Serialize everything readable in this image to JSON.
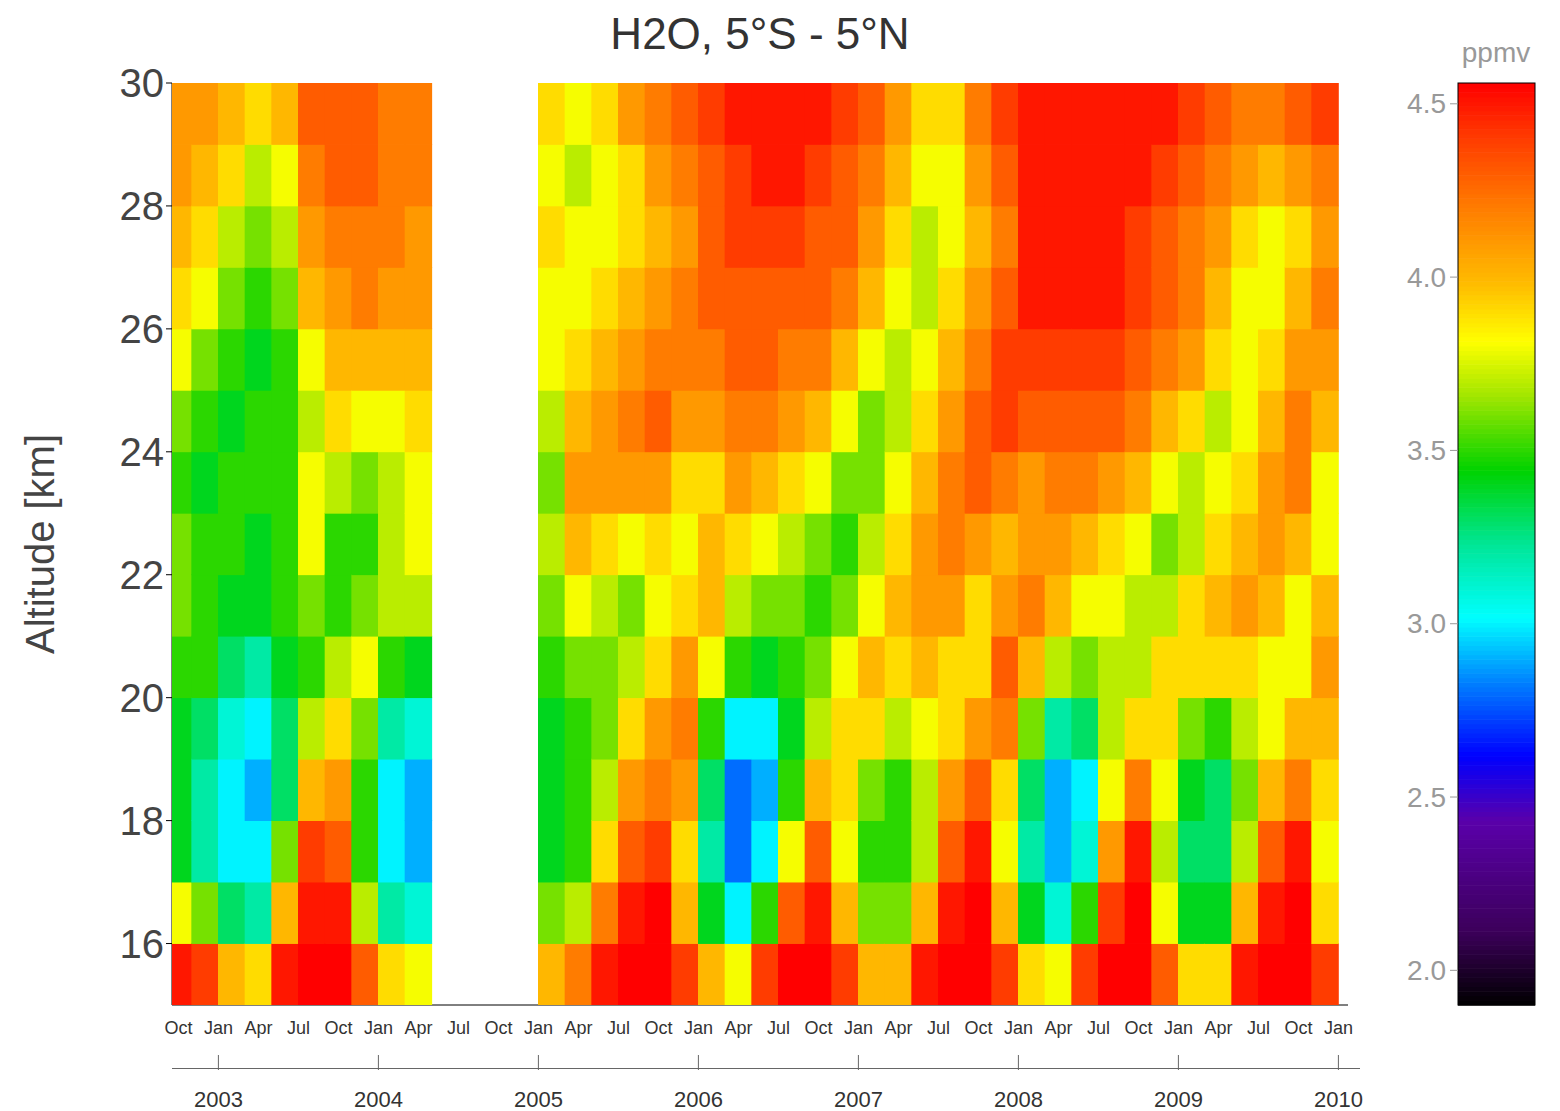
{
  "chart_data": {
    "type": "heatmap",
    "title": "H2O, 5°S - 5°N",
    "y_label": "Altitude [km]",
    "x": [
      2002.75,
      2002.9167,
      2003.0833,
      2003.25,
      2003.4167,
      2003.5833,
      2003.75,
      2003.9167,
      2004.0833,
      2004.25,
      2004.4167,
      2004.5833,
      2004.75,
      2004.9167,
      2005.0833,
      2005.25,
      2005.4167,
      2005.5833,
      2005.75,
      2005.9167,
      2006.0833,
      2006.25,
      2006.4167,
      2006.5833,
      2006.75,
      2006.9167,
      2007.0833,
      2007.25,
      2007.4167,
      2007.5833,
      2007.75,
      2007.9167,
      2008.0833,
      2008.25,
      2008.4167,
      2008.5833,
      2008.75,
      2008.9167,
      2009.0833,
      2009.25,
      2009.4167,
      2009.5833,
      2009.75,
      2009.9167
    ],
    "y": [
      15.5,
      16.5,
      17.5,
      18.5,
      19.5,
      20.5,
      21.5,
      22.5,
      23.5,
      24.5,
      25.5,
      26.5,
      27.5,
      28.5,
      29.5
    ],
    "values": [
      [
        4.5,
        3.8,
        3.4,
        3.4,
        3.4,
        3.5,
        3.6,
        3.6,
        3.5,
        3.6,
        3.8,
        3.9,
        4.0,
        4.1,
        4.1
      ],
      [
        4.4,
        3.6,
        3.2,
        3.2,
        3.3,
        3.5,
        3.5,
        3.5,
        3.4,
        3.5,
        3.6,
        3.8,
        3.9,
        4.0,
        4.1
      ],
      [
        4.0,
        3.3,
        3.0,
        3.0,
        3.1,
        3.3,
        3.4,
        3.5,
        3.5,
        3.4,
        3.5,
        3.6,
        3.7,
        3.9,
        4.0
      ],
      [
        3.9,
        3.2,
        3.0,
        2.9,
        3.0,
        3.2,
        3.4,
        3.4,
        3.5,
        3.5,
        3.4,
        3.5,
        3.6,
        3.7,
        3.9
      ],
      [
        4.5,
        4.0,
        3.6,
        3.3,
        3.3,
        3.4,
        3.5,
        3.5,
        3.5,
        3.5,
        3.5,
        3.6,
        3.7,
        3.8,
        4.0
      ],
      [
        4.6,
        4.5,
        4.4,
        4.0,
        3.7,
        3.5,
        3.6,
        3.8,
        3.8,
        3.7,
        3.8,
        4.0,
        4.1,
        4.2,
        4.3
      ],
      [
        4.6,
        4.5,
        4.3,
        4.1,
        3.9,
        3.7,
        3.5,
        3.5,
        3.7,
        3.9,
        4.0,
        4.1,
        4.2,
        4.3,
        4.3
      ],
      [
        4.3,
        3.7,
        3.5,
        3.5,
        3.6,
        3.8,
        3.6,
        3.5,
        3.6,
        3.8,
        4.0,
        4.2,
        4.2,
        4.3,
        4.3
      ],
      [
        3.9,
        3.2,
        3.0,
        3.0,
        3.2,
        3.5,
        3.7,
        3.7,
        3.7,
        3.8,
        4.0,
        4.1,
        4.2,
        4.2,
        4.2
      ],
      [
        3.8,
        3.1,
        2.9,
        2.9,
        3.1,
        3.4,
        3.7,
        3.8,
        3.8,
        3.9,
        4.0,
        4.1,
        4.1,
        4.2,
        4.2
      ],
      null,
      null,
      null,
      null,
      [
        4.0,
        3.6,
        3.4,
        3.4,
        3.4,
        3.5,
        3.6,
        3.7,
        3.6,
        3.7,
        3.8,
        3.8,
        3.9,
        3.8,
        3.9
      ],
      [
        4.2,
        3.7,
        3.5,
        3.5,
        3.5,
        3.6,
        3.8,
        4.0,
        4.1,
        4.0,
        3.9,
        3.8,
        3.8,
        3.7,
        3.8
      ],
      [
        4.5,
        4.2,
        3.9,
        3.7,
        3.6,
        3.6,
        3.7,
        3.9,
        4.1,
        4.1,
        4.0,
        3.9,
        3.8,
        3.8,
        3.9
      ],
      [
        4.6,
        4.5,
        4.3,
        4.1,
        3.9,
        3.7,
        3.6,
        3.8,
        4.1,
        4.2,
        4.1,
        4.0,
        3.9,
        3.9,
        4.1
      ],
      [
        4.6,
        4.6,
        4.4,
        4.2,
        4.1,
        3.9,
        3.8,
        3.9,
        4.1,
        4.3,
        4.2,
        4.1,
        4.0,
        4.1,
        4.2
      ],
      [
        4.4,
        4.0,
        3.9,
        4.1,
        4.2,
        4.1,
        3.9,
        3.8,
        3.9,
        4.1,
        4.2,
        4.2,
        4.1,
        4.2,
        4.3
      ],
      [
        4.0,
        3.4,
        3.2,
        3.3,
        3.5,
        3.8,
        4.0,
        4.0,
        3.9,
        4.1,
        4.2,
        4.3,
        4.3,
        4.3,
        4.4
      ],
      [
        3.8,
        3.0,
        2.8,
        2.8,
        3.0,
        3.5,
        3.7,
        3.9,
        4.1,
        4.2,
        4.3,
        4.3,
        4.4,
        4.4,
        4.5
      ],
      [
        4.4,
        3.5,
        3.0,
        2.9,
        3.0,
        3.4,
        3.6,
        3.8,
        4.0,
        4.2,
        4.3,
        4.3,
        4.4,
        4.5,
        4.5
      ],
      [
        4.6,
        4.3,
        3.8,
        3.5,
        3.4,
        3.5,
        3.6,
        3.7,
        3.9,
        4.1,
        4.2,
        4.3,
        4.4,
        4.5,
        4.5
      ],
      [
        4.6,
        4.5,
        4.3,
        4.0,
        3.7,
        3.6,
        3.5,
        3.6,
        3.8,
        4.0,
        4.2,
        4.3,
        4.3,
        4.4,
        4.5
      ],
      [
        4.4,
        4.0,
        3.8,
        3.9,
        3.9,
        3.8,
        3.6,
        3.5,
        3.6,
        3.8,
        4.0,
        4.2,
        4.3,
        4.3,
        4.4
      ],
      [
        4.0,
        3.6,
        3.5,
        3.6,
        3.9,
        4.0,
        3.8,
        3.7,
        3.6,
        3.6,
        3.8,
        4.0,
        4.1,
        4.2,
        4.3
      ],
      [
        4.0,
        3.6,
        3.5,
        3.5,
        3.7,
        3.9,
        4.0,
        3.9,
        3.8,
        3.7,
        3.7,
        3.8,
        3.9,
        4.0,
        4.1
      ],
      [
        4.5,
        4.0,
        3.7,
        3.7,
        3.8,
        4.0,
        4.1,
        4.1,
        4.0,
        3.9,
        3.8,
        3.7,
        3.7,
        3.8,
        3.9
      ],
      [
        4.6,
        4.5,
        4.3,
        4.1,
        3.9,
        3.9,
        4.1,
        4.2,
        4.2,
        4.1,
        4.0,
        3.9,
        3.8,
        3.8,
        3.9
      ],
      [
        4.6,
        4.6,
        4.5,
        4.3,
        4.1,
        3.9,
        3.9,
        4.1,
        4.3,
        4.3,
        4.2,
        4.1,
        4.0,
        4.1,
        4.2
      ],
      [
        4.4,
        4.0,
        3.8,
        3.9,
        4.2,
        4.3,
        4.1,
        4.0,
        4.2,
        4.4,
        4.4,
        4.3,
        4.2,
        4.3,
        4.4
      ],
      [
        3.9,
        3.4,
        3.2,
        3.3,
        3.6,
        4.0,
        4.2,
        4.1,
        4.1,
        4.3,
        4.4,
        4.5,
        4.5,
        4.5,
        4.5
      ],
      [
        3.8,
        3.1,
        2.9,
        2.9,
        3.2,
        3.7,
        4.0,
        4.1,
        4.2,
        4.3,
        4.4,
        4.5,
        4.5,
        4.5,
        4.5
      ],
      [
        4.4,
        3.5,
        3.1,
        3.0,
        3.3,
        3.6,
        3.8,
        4.0,
        4.2,
        4.3,
        4.4,
        4.5,
        4.5,
        4.5,
        4.5
      ],
      [
        4.6,
        4.4,
        4.1,
        3.8,
        3.7,
        3.7,
        3.8,
        3.9,
        4.1,
        4.3,
        4.4,
        4.5,
        4.5,
        4.5,
        4.5
      ],
      [
        4.6,
        4.6,
        4.5,
        4.2,
        3.9,
        3.7,
        3.7,
        3.8,
        4.0,
        4.2,
        4.3,
        4.4,
        4.4,
        4.5,
        4.5
      ],
      [
        4.3,
        3.8,
        3.7,
        3.8,
        3.9,
        3.9,
        3.7,
        3.6,
        3.8,
        4.0,
        4.2,
        4.3,
        4.3,
        4.4,
        4.5
      ],
      [
        3.9,
        3.4,
        3.3,
        3.4,
        3.6,
        3.9,
        3.9,
        3.7,
        3.7,
        3.9,
        4.1,
        4.2,
        4.2,
        4.3,
        4.4
      ],
      [
        3.9,
        3.4,
        3.3,
        3.3,
        3.5,
        3.9,
        4.0,
        3.9,
        3.8,
        3.7,
        3.9,
        4.0,
        4.1,
        4.2,
        4.3
      ],
      [
        4.5,
        4.0,
        3.7,
        3.6,
        3.7,
        3.9,
        4.1,
        4.0,
        3.9,
        3.8,
        3.8,
        3.8,
        3.9,
        4.1,
        4.2
      ],
      [
        4.6,
        4.5,
        4.3,
        4.0,
        3.8,
        3.8,
        4.0,
        4.1,
        4.1,
        4.0,
        3.9,
        3.8,
        3.8,
        4.0,
        4.2
      ],
      [
        4.6,
        4.6,
        4.5,
        4.2,
        4.0,
        3.8,
        3.8,
        4.0,
        4.2,
        4.2,
        4.1,
        4.0,
        3.9,
        4.1,
        4.3
      ],
      [
        4.4,
        3.9,
        3.8,
        3.9,
        4.0,
        4.1,
        4.0,
        3.8,
        3.8,
        4.0,
        4.1,
        4.2,
        4.1,
        4.2,
        4.4
      ]
    ],
    "xlim": [
      2002.71,
      2010.06
    ],
    "xticks": [
      {
        "value": 2002.75,
        "label": "Oct"
      },
      {
        "value": 2003,
        "label": "Jan"
      },
      {
        "value": 2003.25,
        "label": "Apr"
      },
      {
        "value": 2003.5,
        "label": "Jul"
      },
      {
        "value": 2003.75,
        "label": "Oct"
      },
      {
        "value": 2004,
        "label": "Jan"
      },
      {
        "value": 2004.25,
        "label": "Apr"
      },
      {
        "value": 2004.5,
        "label": "Jul"
      },
      {
        "value": 2004.75,
        "label": "Oct"
      },
      {
        "value": 2005,
        "label": "Jan"
      },
      {
        "value": 2005.25,
        "label": "Apr"
      },
      {
        "value": 2005.5,
        "label": "Jul"
      },
      {
        "value": 2005.75,
        "label": "Oct"
      },
      {
        "value": 2006,
        "label": "Jan"
      },
      {
        "value": 2006.25,
        "label": "Apr"
      },
      {
        "value": 2006.5,
        "label": "Jul"
      },
      {
        "value": 2006.75,
        "label": "Oct"
      },
      {
        "value": 2007,
        "label": "Jan"
      },
      {
        "value": 2007.25,
        "label": "Apr"
      },
      {
        "value": 2007.5,
        "label": "Jul"
      },
      {
        "value": 2007.75,
        "label": "Oct"
      },
      {
        "value": 2008,
        "label": "Jan"
      },
      {
        "value": 2008.25,
        "label": "Apr"
      },
      {
        "value": 2008.5,
        "label": "Jul"
      },
      {
        "value": 2008.75,
        "label": "Oct"
      },
      {
        "value": 2009,
        "label": "Jan"
      },
      {
        "value": 2009.25,
        "label": "Apr"
      },
      {
        "value": 2009.5,
        "label": "Jul"
      },
      {
        "value": 2009.75,
        "label": "Oct"
      },
      {
        "value": 2010,
        "label": "Jan"
      }
    ],
    "year_ticks": [
      2003,
      2004,
      2005,
      2006,
      2007,
      2008,
      2009,
      2010
    ],
    "ylim": [
      15,
      30
    ],
    "yticks": [
      16,
      18,
      20,
      22,
      24,
      26,
      28,
      30
    ],
    "colorbar": {
      "label": "ppmv",
      "range": [
        1.9,
        4.56
      ],
      "ticks": [
        {
          "value": 2,
          "label": "2.0"
        },
        2.5,
        {
          "value": 3,
          "label": "3.0"
        },
        3.5,
        {
          "value": 4,
          "label": "4.0"
        },
        4.5
      ]
    }
  }
}
